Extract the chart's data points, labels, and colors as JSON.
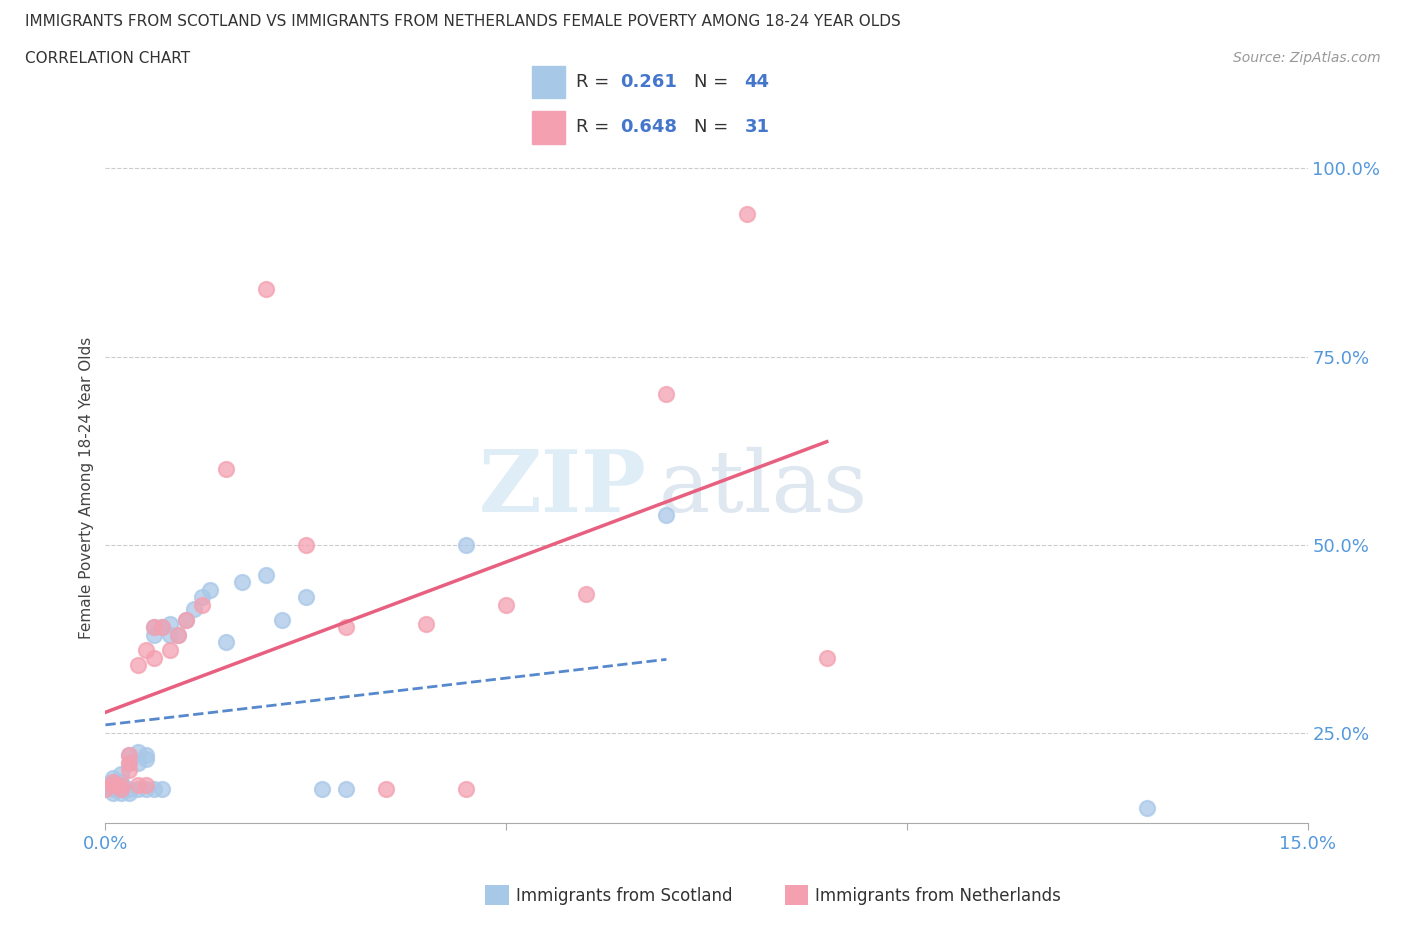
{
  "title_line1": "IMMIGRANTS FROM SCOTLAND VS IMMIGRANTS FROM NETHERLANDS FEMALE POVERTY AMONG 18-24 YEAR OLDS",
  "title_line2": "CORRELATION CHART",
  "source_text": "Source: ZipAtlas.com",
  "ylabel": "Female Poverty Among 18-24 Year Olds",
  "xlim": [
    0.0,
    0.15
  ],
  "ylim": [
    0.13,
    1.02
  ],
  "yticks_right": [
    0.25,
    0.5,
    0.75,
    1.0
  ],
  "yticklabels_right": [
    "25.0%",
    "50.0%",
    "75.0%",
    "100.0%"
  ],
  "xtick_left_label": "0.0%",
  "xtick_right_label": "15.0%",
  "watermark_zip": "ZIP",
  "watermark_atlas": "atlas",
  "scotland_color": "#a8c8e8",
  "netherlands_color": "#f4a0b0",
  "scotland_line_color": "#5588cc",
  "netherlands_line_color": "#e86080",
  "legend_value_color": "#4477cc",
  "bottom_legend_label1": "Immigrants from Scotland",
  "bottom_legend_label2": "Immigrants from Netherlands",
  "scotland_x": [
    0.0,
    0.0,
    0.001,
    0.001,
    0.001,
    0.001,
    0.001,
    0.002,
    0.002,
    0.002,
    0.002,
    0.002,
    0.003,
    0.003,
    0.003,
    0.003,
    0.004,
    0.004,
    0.004,
    0.005,
    0.005,
    0.005,
    0.006,
    0.006,
    0.006,
    0.007,
    0.007,
    0.008,
    0.008,
    0.009,
    0.01,
    0.011,
    0.012,
    0.013,
    0.015,
    0.017,
    0.02,
    0.022,
    0.025,
    0.027,
    0.03,
    0.045,
    0.07,
    0.13
  ],
  "scotland_y": [
    0.175,
    0.18,
    0.17,
    0.175,
    0.18,
    0.185,
    0.19,
    0.17,
    0.175,
    0.18,
    0.185,
    0.195,
    0.17,
    0.175,
    0.21,
    0.22,
    0.175,
    0.21,
    0.225,
    0.175,
    0.22,
    0.215,
    0.175,
    0.38,
    0.39,
    0.175,
    0.39,
    0.38,
    0.395,
    0.38,
    0.4,
    0.415,
    0.43,
    0.44,
    0.37,
    0.45,
    0.46,
    0.4,
    0.43,
    0.175,
    0.175,
    0.5,
    0.54,
    0.15
  ],
  "netherlands_x": [
    0.0,
    0.001,
    0.001,
    0.002,
    0.002,
    0.003,
    0.003,
    0.003,
    0.004,
    0.004,
    0.005,
    0.005,
    0.006,
    0.006,
    0.007,
    0.008,
    0.009,
    0.01,
    0.012,
    0.015,
    0.02,
    0.025,
    0.03,
    0.035,
    0.04,
    0.045,
    0.05,
    0.06,
    0.07,
    0.08,
    0.09
  ],
  "netherlands_y": [
    0.175,
    0.18,
    0.185,
    0.175,
    0.18,
    0.2,
    0.21,
    0.22,
    0.18,
    0.34,
    0.18,
    0.36,
    0.35,
    0.39,
    0.39,
    0.36,
    0.38,
    0.4,
    0.42,
    0.6,
    0.84,
    0.5,
    0.39,
    0.175,
    0.395,
    0.175,
    0.42,
    0.435,
    0.7,
    0.94,
    0.35
  ]
}
